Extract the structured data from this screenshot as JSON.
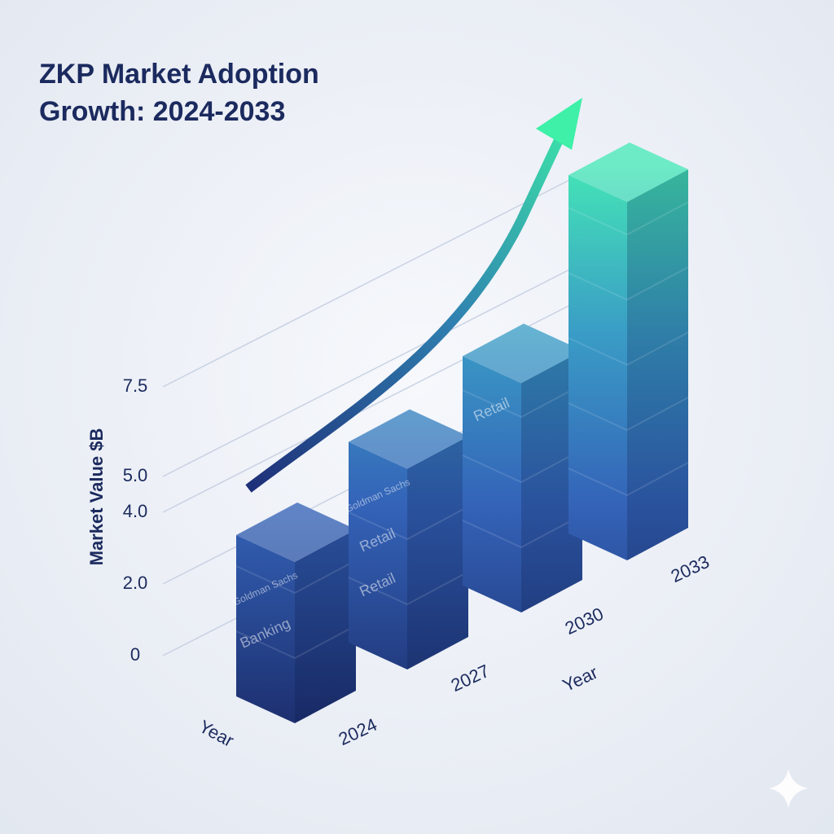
{
  "chart_data": {
    "type": "bar3d",
    "title": "ZKP Market Adoption Growth: 2024-2033",
    "xlabel": "Year",
    "ylabel": "Market Value $B",
    "categories": [
      "2024",
      "2027",
      "2030",
      "2033"
    ],
    "values": [
      4.5,
      5.6,
      6.4,
      10
    ],
    "ylim": [
      0,
      10
    ],
    "yticks": [
      0,
      {
        "value": 2,
        "label": "2.0"
      },
      {
        "value": 4,
        "label": "4.0"
      },
      {
        "value": 5,
        "label": "5.0"
      },
      7.5
    ],
    "grid": true,
    "annotations": [
      {
        "text": "Goldman Sachs",
        "x": "2024"
      },
      {
        "text": "Banking",
        "x": "2024"
      },
      {
        "text": "Goldman Sachs",
        "x": "2027"
      },
      {
        "text": "Retail",
        "x": "2027"
      },
      {
        "text": "Retail",
        "x": "2027"
      },
      {
        "text": "Retail",
        "x": "2030"
      }
    ]
  }
}
